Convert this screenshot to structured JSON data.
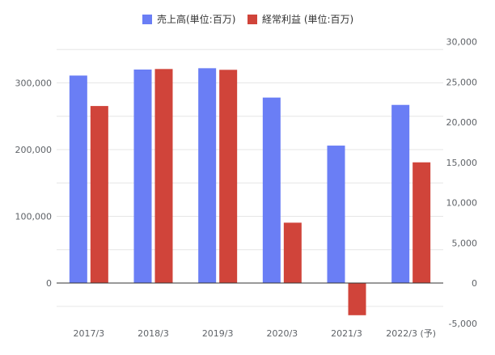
{
  "chart_data": {
    "type": "bar",
    "categories": [
      "2017/3",
      "2018/3",
      "2019/3",
      "2020/3",
      "2021/3",
      "2022/3 (予)"
    ],
    "series": [
      {
        "name": "売上高(単位:百万)",
        "axis": "left",
        "color": "#6a7ef5",
        "values": [
          311000,
          320000,
          322000,
          278000,
          206000,
          267000
        ]
      },
      {
        "name": "経常利益 (単位:百万)",
        "axis": "right",
        "color": "#d0443a",
        "values": [
          22000,
          26600,
          26500,
          7500,
          -4000,
          15000
        ]
      }
    ],
    "left_axis": {
      "ylim": [
        -50000,
        370000
      ],
      "ticks": [
        0,
        100000,
        200000,
        300000
      ],
      "tick_labels": [
        "0",
        "100,000",
        "200,000",
        "300,000"
      ]
    },
    "right_axis": {
      "ylim": [
        -5000,
        30000
      ],
      "ticks": [
        -5000,
        0,
        5000,
        10000,
        15000,
        20000,
        25000,
        30000
      ],
      "tick_labels": [
        "-5,000",
        "0",
        "5,000",
        "10,000",
        "15,000",
        "20,000",
        "25,000",
        "30,000"
      ]
    },
    "grid": true,
    "legend_position": "top-center"
  }
}
